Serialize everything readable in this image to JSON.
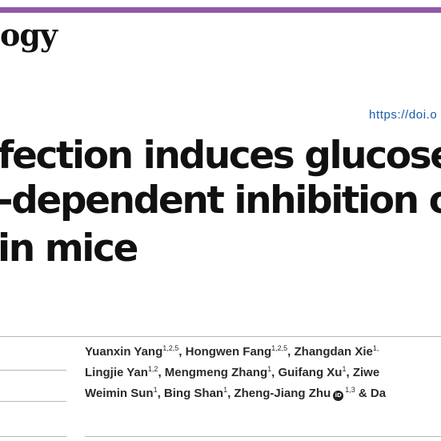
{
  "header": {
    "journal_name": "ogy",
    "doi_text": "https://doi.o"
  },
  "title": {
    "line1": "fection induces glucose d",
    "line2": "-dependent inhibition of",
    "line3": "in mice"
  },
  "authors": {
    "line1": {
      "a": "Yuanxin Yang",
      "a_sup": "1,2,5",
      "b": ", Hongwen Fang",
      "b_sup": "1,2,5",
      "c": ", Zhangdan Xie",
      "c_sup": "1,"
    },
    "line2": {
      "a": "Lingjie Yan",
      "a_sup": "1,2",
      "b": ", Mengmeng Zhang",
      "b_sup": "1",
      "c": ", Guifang Xu",
      "c_sup": "1",
      "d": ", Ziwe"
    },
    "line3": {
      "a": "Weimin Sun",
      "a_sup": "1",
      "b": ", Bing Shan",
      "b_sup": "1",
      "c": ", Zheng-Jiang Zhu",
      "c_sup": "1,3",
      "d": " & Da"
    },
    "orcid_icon": "orcid-icon",
    "orcid_glyph": "iD"
  },
  "colors": {
    "accent_bar": "#8e5aa7",
    "doi_link": "#1a5aa8",
    "text": "#111111"
  }
}
